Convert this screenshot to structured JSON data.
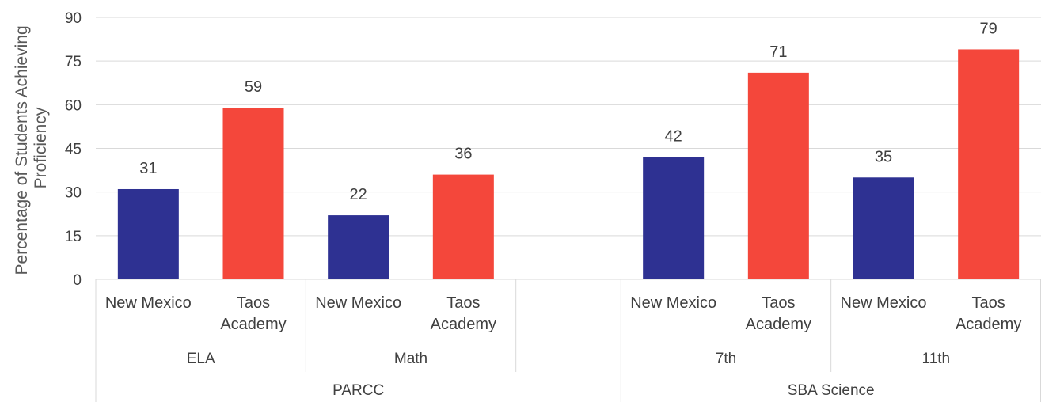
{
  "chart_data": {
    "type": "bar",
    "ylabel_lines": [
      "Percentage of Students Achieving",
      "Proficiency"
    ],
    "ylim": [
      0,
      90
    ],
    "yticks": [
      0,
      15,
      30,
      45,
      60,
      75,
      90
    ],
    "grid": true,
    "colors": {
      "New Mexico": "#2e3192",
      "Taos Academy": "#f4473b"
    },
    "slots": [
      {
        "label": "New Mexico",
        "value": 31,
        "series": "New Mexico"
      },
      {
        "label": "Taos Academy",
        "value": 59,
        "series": "Taos Academy"
      },
      {
        "label": "New Mexico",
        "value": 22,
        "series": "New Mexico"
      },
      {
        "label": "Taos Academy",
        "value": 36,
        "series": "Taos Academy"
      },
      {
        "label": "",
        "value": null,
        "series": null
      },
      {
        "label": "New Mexico",
        "value": 42,
        "series": "New Mexico"
      },
      {
        "label": "Taos Academy",
        "value": 71,
        "series": "Taos Academy"
      },
      {
        "label": "New Mexico",
        "value": 35,
        "series": "New Mexico"
      },
      {
        "label": "Taos Academy",
        "value": 79,
        "series": "Taos Academy"
      }
    ],
    "groups": [
      {
        "label": "ELA",
        "from": 0,
        "to": 1
      },
      {
        "label": "Math",
        "from": 2,
        "to": 3
      },
      {
        "label": "",
        "from": 4,
        "to": 4
      },
      {
        "label": "7th",
        "from": 5,
        "to": 6
      },
      {
        "label": "11th",
        "from": 7,
        "to": 8
      }
    ],
    "super_groups": [
      {
        "label": "PARCC",
        "from": 0,
        "to": 4
      },
      {
        "label": "SBA Science",
        "from": 5,
        "to": 8
      }
    ]
  }
}
